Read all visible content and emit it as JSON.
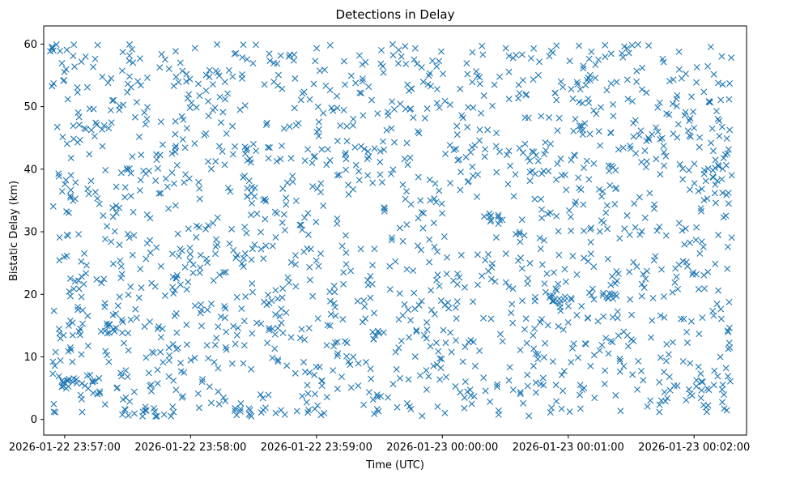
{
  "chart_data": {
    "type": "scatter",
    "title": "Detections in Delay",
    "xlabel": "Time (UTC)",
    "ylabel": "Bistatic Delay (km)",
    "marker": "x",
    "color": "#1f77b4",
    "x_range_seconds": [
      -10,
      325
    ],
    "ylim": [
      -2.5,
      62.9
    ],
    "x_ticks": [
      {
        "label": "2026-01-22 23:57:00",
        "seconds": 0
      },
      {
        "label": "2026-01-22 23:58:00",
        "seconds": 60
      },
      {
        "label": "2026-01-22 23:59:00",
        "seconds": 120
      },
      {
        "label": "2026-01-23 00:00:00",
        "seconds": 180
      },
      {
        "label": "2026-01-23 00:01:00",
        "seconds": 240
      },
      {
        "label": "2026-01-23 00:02:00",
        "seconds": 300
      }
    ],
    "y_ticks": [
      0,
      10,
      20,
      30,
      40,
      50,
      60
    ],
    "point_count": 1750,
    "x_seconds_span": [
      -7,
      318
    ],
    "y_span": [
      0.5,
      60
    ],
    "generator_seed": 20260122,
    "clusters": [
      {
        "x": 2,
        "y": 6,
        "n": 12
      },
      {
        "x": 23,
        "y": 14.5,
        "n": 8
      },
      {
        "x": 40,
        "y": 1,
        "n": 8
      },
      {
        "x": 85,
        "y": 1.2,
        "n": 10
      },
      {
        "x": 235,
        "y": 19,
        "n": 10
      },
      {
        "x": 260,
        "y": 19.5,
        "n": 10
      },
      {
        "x": 310,
        "y": 40,
        "n": 6
      },
      {
        "x": -4,
        "y": 59.5,
        "n": 6
      },
      {
        "x": 205,
        "y": 32,
        "n": 8
      }
    ]
  }
}
